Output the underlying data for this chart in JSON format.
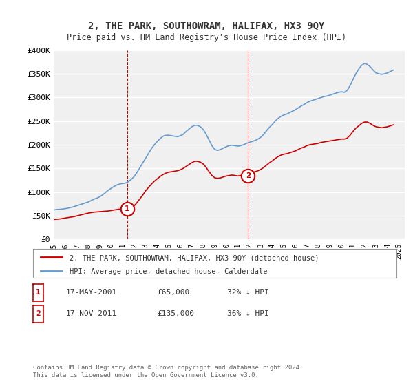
{
  "title": "2, THE PARK, SOUTHOWRAM, HALIFAX, HX3 9QY",
  "subtitle": "Price paid vs. HM Land Registry's House Price Index (HPI)",
  "ylabel": "",
  "xlabel": "",
  "ylim": [
    0,
    400000
  ],
  "yticks": [
    0,
    50000,
    100000,
    150000,
    200000,
    250000,
    300000,
    350000,
    400000
  ],
  "ytick_labels": [
    "£0",
    "£50K",
    "£100K",
    "£150K",
    "£200K",
    "£250K",
    "£300K",
    "£350K",
    "£400K"
  ],
  "xlim_start": 1995.0,
  "xlim_end": 2025.5,
  "background_color": "#ffffff",
  "plot_bg_color": "#f0f0f0",
  "grid_color": "#ffffff",
  "sale1_x": 2001.38,
  "sale1_y": 65000,
  "sale1_label": "1",
  "sale1_date": "17-MAY-2001",
  "sale1_price": "£65,000",
  "sale1_hpi": "32% ↓ HPI",
  "sale2_x": 2011.88,
  "sale2_y": 135000,
  "sale2_label": "2",
  "sale2_date": "17-NOV-2011",
  "sale2_price": "£135,000",
  "sale2_hpi": "36% ↓ HPI",
  "line_price_color": "#cc0000",
  "line_hpi_color": "#6699cc",
  "legend_label_price": "2, THE PARK, SOUTHOWRAM, HALIFAX, HX3 9QY (detached house)",
  "legend_label_hpi": "HPI: Average price, detached house, Calderdale",
  "footer": "Contains HM Land Registry data © Crown copyright and database right 2024.\nThis data is licensed under the Open Government Licence v3.0.",
  "hpi_data_x": [
    1995.0,
    1995.25,
    1995.5,
    1995.75,
    1996.0,
    1996.25,
    1996.5,
    1996.75,
    1997.0,
    1997.25,
    1997.5,
    1997.75,
    1998.0,
    1998.25,
    1998.5,
    1998.75,
    1999.0,
    1999.25,
    1999.5,
    1999.75,
    2000.0,
    2000.25,
    2000.5,
    2000.75,
    2001.0,
    2001.25,
    2001.5,
    2001.75,
    2002.0,
    2002.25,
    2002.5,
    2002.75,
    2003.0,
    2003.25,
    2003.5,
    2003.75,
    2004.0,
    2004.25,
    2004.5,
    2004.75,
    2005.0,
    2005.25,
    2005.5,
    2005.75,
    2006.0,
    2006.25,
    2006.5,
    2006.75,
    2007.0,
    2007.25,
    2007.5,
    2007.75,
    2008.0,
    2008.25,
    2008.5,
    2008.75,
    2009.0,
    2009.25,
    2009.5,
    2009.75,
    2010.0,
    2010.25,
    2010.5,
    2010.75,
    2011.0,
    2011.25,
    2011.5,
    2011.75,
    2012.0,
    2012.25,
    2012.5,
    2012.75,
    2013.0,
    2013.25,
    2013.5,
    2013.75,
    2014.0,
    2014.25,
    2014.5,
    2014.75,
    2015.0,
    2015.25,
    2015.5,
    2015.75,
    2016.0,
    2016.25,
    2016.5,
    2016.75,
    2017.0,
    2017.25,
    2017.5,
    2017.75,
    2018.0,
    2018.25,
    2018.5,
    2018.75,
    2019.0,
    2019.25,
    2019.5,
    2019.75,
    2020.0,
    2020.25,
    2020.5,
    2020.75,
    2021.0,
    2021.25,
    2021.5,
    2021.75,
    2022.0,
    2022.25,
    2022.5,
    2022.75,
    2023.0,
    2023.25,
    2023.5,
    2023.75,
    2024.0,
    2024.25,
    2024.5
  ],
  "hpi_data_y": [
    62000,
    63000,
    63500,
    64000,
    65000,
    66000,
    67500,
    69000,
    71000,
    73000,
    75000,
    77000,
    79000,
    82000,
    85000,
    87000,
    90000,
    94000,
    99000,
    104000,
    108000,
    112000,
    115000,
    117000,
    118000,
    119000,
    122000,
    127000,
    133000,
    142000,
    152000,
    162000,
    172000,
    182000,
    192000,
    200000,
    207000,
    213000,
    218000,
    220000,
    220000,
    219000,
    218000,
    217000,
    219000,
    222000,
    228000,
    233000,
    238000,
    241000,
    241000,
    238000,
    232000,
    222000,
    210000,
    198000,
    190000,
    188000,
    190000,
    193000,
    196000,
    198000,
    199000,
    198000,
    197000,
    198000,
    200000,
    203000,
    205000,
    207000,
    209000,
    212000,
    216000,
    222000,
    230000,
    237000,
    243000,
    250000,
    256000,
    260000,
    263000,
    265000,
    268000,
    271000,
    274000,
    278000,
    282000,
    285000,
    289000,
    292000,
    294000,
    296000,
    298000,
    300000,
    302000,
    303000,
    305000,
    307000,
    309000,
    311000,
    312000,
    311000,
    315000,
    325000,
    338000,
    350000,
    360000,
    368000,
    372000,
    370000,
    365000,
    358000,
    352000,
    350000,
    349000,
    350000,
    352000,
    355000,
    358000
  ],
  "price_data_x": [
    1995.0,
    1995.25,
    1995.5,
    1995.75,
    1996.0,
    1996.25,
    1996.5,
    1996.75,
    1997.0,
    1997.25,
    1997.5,
    1997.75,
    1998.0,
    1998.25,
    1998.5,
    1998.75,
    1999.0,
    1999.25,
    1999.5,
    1999.75,
    2000.0,
    2000.25,
    2000.5,
    2000.75,
    2001.0,
    2001.25,
    2001.5,
    2001.75,
    2002.0,
    2002.25,
    2002.5,
    2002.75,
    2003.0,
    2003.25,
    2003.5,
    2003.75,
    2004.0,
    2004.25,
    2004.5,
    2004.75,
    2005.0,
    2005.25,
    2005.5,
    2005.75,
    2006.0,
    2006.25,
    2006.5,
    2006.75,
    2007.0,
    2007.25,
    2007.5,
    2007.75,
    2008.0,
    2008.25,
    2008.5,
    2008.75,
    2009.0,
    2009.25,
    2009.5,
    2009.75,
    2010.0,
    2010.25,
    2010.5,
    2010.75,
    2011.0,
    2011.25,
    2011.5,
    2011.75,
    2012.0,
    2012.25,
    2012.5,
    2012.75,
    2013.0,
    2013.25,
    2013.5,
    2013.75,
    2014.0,
    2014.25,
    2014.5,
    2014.75,
    2015.0,
    2015.25,
    2015.5,
    2015.75,
    2016.0,
    2016.25,
    2016.5,
    2016.75,
    2017.0,
    2017.25,
    2017.5,
    2017.75,
    2018.0,
    2018.25,
    2018.5,
    2018.75,
    2019.0,
    2019.25,
    2019.5,
    2019.75,
    2020.0,
    2020.25,
    2020.5,
    2020.75,
    2021.0,
    2021.25,
    2021.5,
    2021.75,
    2022.0,
    2022.25,
    2022.5,
    2022.75,
    2023.0,
    2023.25,
    2023.5,
    2023.75,
    2024.0,
    2024.25,
    2024.5
  ],
  "price_data_y": [
    42000,
    42500,
    43000,
    44000,
    45000,
    46000,
    47000,
    48000,
    49500,
    51000,
    52500,
    54000,
    55500,
    56500,
    57500,
    58000,
    58500,
    59000,
    59500,
    60000,
    61000,
    62000,
    63000,
    64000,
    65000,
    65000,
    65000,
    67000,
    71000,
    78000,
    86000,
    94000,
    103000,
    110000,
    117000,
    123000,
    128000,
    133000,
    137000,
    140000,
    142000,
    143000,
    144000,
    145000,
    147000,
    150000,
    154000,
    158000,
    162000,
    165000,
    165000,
    163000,
    159000,
    152000,
    143000,
    135000,
    130000,
    129000,
    130000,
    132000,
    134000,
    135000,
    136000,
    135000,
    134000,
    135000,
    136000,
    138000,
    140000,
    142000,
    143000,
    145000,
    148000,
    152000,
    157000,
    162000,
    166000,
    171000,
    175000,
    178000,
    180000,
    181000,
    183000,
    185000,
    187000,
    190000,
    193000,
    195000,
    198000,
    200000,
    201000,
    202000,
    203000,
    205000,
    206000,
    207000,
    208000,
    209000,
    210000,
    211000,
    212000,
    212000,
    214000,
    220000,
    228000,
    235000,
    240000,
    245000,
    248000,
    248000,
    245000,
    241000,
    238000,
    237000,
    236000,
    237000,
    238000,
    240000,
    242000
  ]
}
